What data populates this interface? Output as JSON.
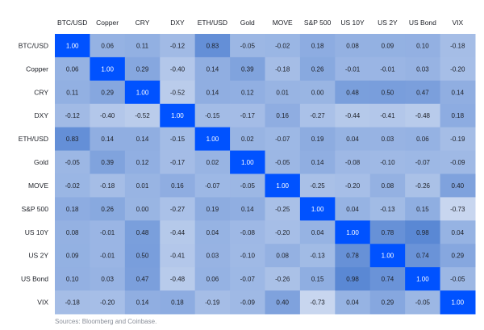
{
  "chart_data": {
    "type": "heatmap",
    "title": "",
    "labels": [
      "BTC/USD",
      "Copper",
      "CRY",
      "DXY",
      "ETH/USD",
      "Gold",
      "MOVE",
      "S&P 500",
      "US 10Y",
      "US 2Y",
      "US Bond",
      "VIX"
    ],
    "values": [
      [
        1.0,
        0.06,
        0.11,
        -0.12,
        0.83,
        -0.05,
        -0.02,
        0.18,
        0.08,
        0.09,
        0.1,
        -0.18
      ],
      [
        0.06,
        1.0,
        0.29,
        -0.4,
        0.14,
        0.39,
        -0.18,
        0.26,
        -0.01,
        -0.01,
        0.03,
        -0.2
      ],
      [
        0.11,
        0.29,
        1.0,
        -0.52,
        0.14,
        0.12,
        0.01,
        0.0,
        0.48,
        0.5,
        0.47,
        0.14
      ],
      [
        -0.12,
        -0.4,
        -0.52,
        1.0,
        -0.15,
        -0.17,
        0.16,
        -0.27,
        -0.44,
        -0.41,
        -0.48,
        0.18
      ],
      [
        0.83,
        0.14,
        0.14,
        -0.15,
        1.0,
        0.02,
        -0.07,
        0.19,
        0.04,
        0.03,
        0.06,
        -0.19
      ],
      [
        -0.05,
        0.39,
        0.12,
        -0.17,
        0.02,
        1.0,
        -0.05,
        0.14,
        -0.08,
        -0.1,
        -0.07,
        -0.09
      ],
      [
        -0.02,
        -0.18,
        0.01,
        0.16,
        -0.07,
        -0.05,
        1.0,
        -0.25,
        -0.2,
        0.08,
        -0.26,
        0.4
      ],
      [
        0.18,
        0.26,
        0.0,
        -0.27,
        0.19,
        0.14,
        -0.25,
        1.0,
        0.04,
        -0.13,
        0.15,
        -0.73
      ],
      [
        0.08,
        -0.01,
        0.48,
        -0.44,
        0.04,
        -0.08,
        -0.2,
        0.04,
        1.0,
        0.78,
        0.98,
        0.04
      ],
      [
        0.09,
        -0.01,
        0.5,
        -0.41,
        0.03,
        -0.1,
        0.08,
        -0.13,
        0.78,
        1.0,
        0.74,
        0.29
      ],
      [
        0.1,
        0.03,
        0.47,
        -0.48,
        0.06,
        -0.07,
        -0.26,
        0.15,
        0.98,
        0.74,
        1.0,
        -0.05
      ],
      [
        -0.18,
        -0.2,
        0.14,
        0.18,
        -0.19,
        -0.09,
        0.4,
        -0.73,
        0.04,
        0.29,
        -0.05,
        1.0
      ]
    ],
    "colors": {
      "diagonal": "#0052ff",
      "low": "#c9d7ef",
      "high": "#5987d4",
      "diagonal_text": "#ffffff",
      "text": "#1c1f26"
    }
  },
  "source": "Sources: Bloomberg and Coinbase."
}
